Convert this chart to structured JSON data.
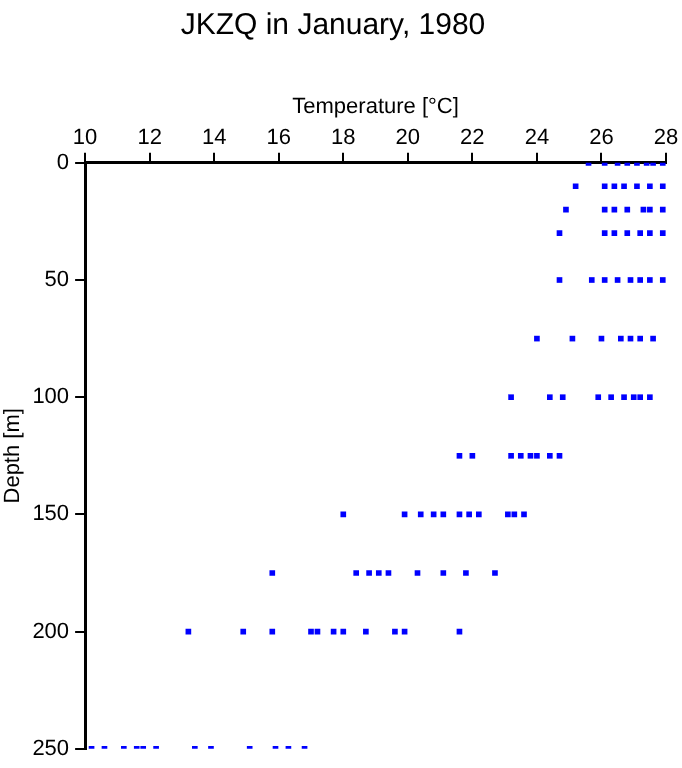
{
  "chart_data": {
    "type": "scatter",
    "title": "JKZQ in January, 1980",
    "xlabel": "Temperature [°C]",
    "ylabel": "Depth [m]",
    "series": [
      {
        "color": "#0000ff",
        "x": [
          25.6,
          26.1,
          26.5,
          26.8,
          27.1,
          27.4,
          27.6,
          27.9,
          25.2,
          26.1,
          26.4,
          26.7,
          27.1,
          27.5,
          27.9,
          24.9,
          26.1,
          26.4,
          26.8,
          27.3,
          27.5,
          27.9,
          24.7,
          26.1,
          26.4,
          26.8,
          27.2,
          27.5,
          27.9,
          24.7,
          25.7,
          26.1,
          26.5,
          26.9,
          27.2,
          27.5,
          27.9,
          24.0,
          25.1,
          26.0,
          26.6,
          26.9,
          27.2,
          27.6,
          23.2,
          24.4,
          24.8,
          25.9,
          26.3,
          26.7,
          27.0,
          27.2,
          27.5,
          21.6,
          22.0,
          23.2,
          23.5,
          23.8,
          24.0,
          24.4,
          24.7,
          18.0,
          19.9,
          20.4,
          20.8,
          21.1,
          21.6,
          21.9,
          22.2,
          23.1,
          23.3,
          23.6,
          15.8,
          18.4,
          18.8,
          19.1,
          19.4,
          20.3,
          21.1,
          21.8,
          22.7,
          13.2,
          14.9,
          15.8,
          17.0,
          17.2,
          17.7,
          18.0,
          18.7,
          19.6,
          19.9,
          21.6,
          10.2,
          10.6,
          11.2,
          11.6,
          11.8,
          12.2,
          13.4,
          13.9,
          15.1,
          15.9,
          16.3,
          16.8
        ],
        "values": [
          0,
          0,
          0,
          0,
          0,
          0,
          0,
          0,
          10,
          10,
          10,
          10,
          10,
          10,
          10,
          20,
          20,
          20,
          20,
          20,
          20,
          20,
          30,
          30,
          30,
          30,
          30,
          30,
          30,
          50,
          50,
          50,
          50,
          50,
          50,
          50,
          50,
          75,
          75,
          75,
          75,
          75,
          75,
          75,
          100,
          100,
          100,
          100,
          100,
          100,
          100,
          100,
          100,
          125,
          125,
          125,
          125,
          125,
          125,
          125,
          125,
          150,
          150,
          150,
          150,
          150,
          150,
          150,
          150,
          150,
          150,
          150,
          175,
          175,
          175,
          175,
          175,
          175,
          175,
          175,
          175,
          200,
          200,
          200,
          200,
          200,
          200,
          200,
          200,
          200,
          200,
          200,
          250,
          250,
          250,
          250,
          250,
          250,
          250,
          250,
          250,
          250,
          250,
          250
        ]
      }
    ],
    "xlim": [
      10,
      28
    ],
    "xticks": [
      10,
      12,
      14,
      16,
      18,
      20,
      22,
      24,
      26,
      28
    ],
    "ylim": [
      250,
      0
    ],
    "yticks": [
      0,
      50,
      100,
      150,
      200,
      250
    ],
    "grid": false,
    "legend": false,
    "marker": "square"
  }
}
